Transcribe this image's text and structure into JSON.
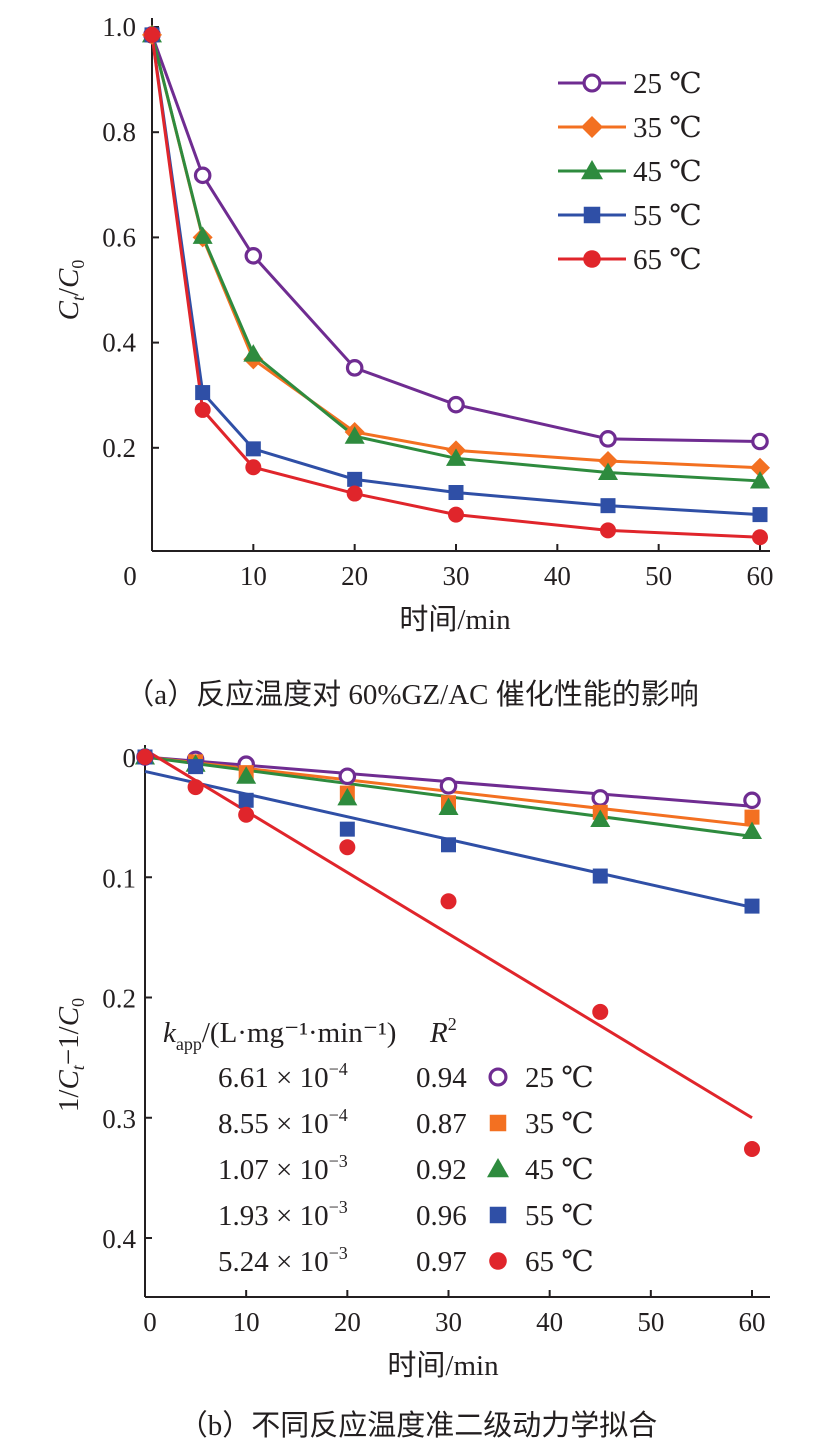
{
  "chart_data": [
    {
      "type": "line",
      "caption": "（a）反应温度对 60%GZ/AC 催化性能的影响",
      "xlabel": "时间/min",
      "ylabel_var": "C",
      "ylabel_sub_t": "t",
      "ylabel_slash": "/",
      "ylabel_sub_0": "0",
      "xlim": [
        0,
        60
      ],
      "ylim": [
        0,
        1.0
      ],
      "x_ticks": [
        0,
        10,
        20,
        30,
        40,
        50,
        60
      ],
      "x_tick_labels": [
        "0",
        "10",
        "20",
        "30",
        "40",
        "50",
        "60"
      ],
      "y_ticks": [
        0.2,
        0.4,
        0.6,
        0.8,
        1.0
      ],
      "y_tick_labels": [
        "0.2",
        "0.4",
        "0.6",
        "0.8",
        "1.0"
      ],
      "legend_position": "top-right",
      "x": [
        0,
        5,
        10,
        20,
        30,
        45,
        60
      ],
      "series": [
        {
          "name": "25 ℃",
          "color": "#6f2c91",
          "marker": "open-circle",
          "values": [
            0.985,
            0.718,
            0.565,
            0.352,
            0.282,
            0.217,
            0.212
          ]
        },
        {
          "name": "35 ℃",
          "color": "#f37021",
          "marker": "diamond",
          "values": [
            0.985,
            0.6,
            0.368,
            0.23,
            0.195,
            0.175,
            0.162
          ]
        },
        {
          "name": "45 ℃",
          "color": "#2e8b3e",
          "marker": "triangle",
          "values": [
            0.985,
            0.602,
            0.378,
            0.222,
            0.18,
            0.153,
            0.137
          ]
        },
        {
          "name": "55 ℃",
          "color": "#2f4fa6",
          "marker": "square",
          "values": [
            0.985,
            0.305,
            0.198,
            0.14,
            0.115,
            0.09,
            0.073
          ]
        },
        {
          "name": "65 ℃",
          "color": "#e0252b",
          "marker": "circle",
          "values": [
            0.985,
            0.272,
            0.163,
            0.113,
            0.073,
            0.043,
            0.03
          ]
        }
      ]
    },
    {
      "type": "scatter",
      "caption": "（b）不同反应温度准二级动力学拟合",
      "xlabel": "时间/min",
      "ylabel_a": "1/",
      "ylabel_var1": "C",
      "ylabel_sub_t": "t",
      "ylabel_b": "−1/",
      "ylabel_var2": "C",
      "ylabel_sub_0": "0",
      "xlim": [
        0,
        60
      ],
      "ylim": [
        0,
        0.45
      ],
      "y_reversed": true,
      "x_ticks": [
        0,
        10,
        20,
        30,
        40,
        50,
        60
      ],
      "x_tick_labels": [
        "0",
        "10",
        "20",
        "30",
        "40",
        "50",
        "60"
      ],
      "y_ticks": [
        0,
        0.1,
        0.2,
        0.3,
        0.4
      ],
      "y_tick_labels": [
        "0",
        "0.1",
        "0.2",
        "0.3",
        "0.4"
      ],
      "x": [
        0,
        5,
        10,
        20,
        30,
        45,
        60
      ],
      "table_header_k": "k",
      "table_header_k_sub": "app",
      "table_header_k_unit": "/(L·mg⁻¹·min⁻¹)",
      "table_header_r": "R",
      "table_header_r_sup": "2",
      "series": [
        {
          "name": "25 ℃",
          "color": "#6f2c91",
          "marker": "open-circle",
          "k_mant": "6.61 × 10",
          "k_exp": "−4",
          "r2": "0.94",
          "values": [
            0.0,
            0.002,
            0.006,
            0.016,
            0.024,
            0.034,
            0.036
          ],
          "fit": [
            0.0,
            0.041
          ]
        },
        {
          "name": "35 ℃",
          "color": "#f37021",
          "marker": "square",
          "k_mant": "8.55 × 10",
          "k_exp": "−4",
          "r2": "0.87",
          "values": [
            0.0,
            0.004,
            0.013,
            0.03,
            0.038,
            0.046,
            0.05
          ],
          "fit": [
            0.0,
            0.057
          ]
        },
        {
          "name": "45 ℃",
          "color": "#2e8b3e",
          "marker": "triangle",
          "values": [
            0.0,
            0.006,
            0.016,
            0.034,
            0.042,
            0.052,
            0.062
          ],
          "k_mant": "1.07 × 10",
          "k_exp": "−3",
          "r2": "0.92",
          "fit": [
            0.0,
            0.066
          ]
        },
        {
          "name": "55 ℃",
          "color": "#2f4fa6",
          "marker": "square",
          "k_mant": "1.93 × 10",
          "k_exp": "−3",
          "r2": "0.96",
          "values": [
            0.0,
            0.008,
            0.036,
            0.06,
            0.073,
            0.099,
            0.124
          ],
          "fit": [
            0.012,
            0.125
          ]
        },
        {
          "name": "65 ℃",
          "color": "#e0252b",
          "marker": "circle",
          "k_mant": "5.24 × 10",
          "k_exp": "−3",
          "r2": "0.97",
          "values": [
            0.0,
            0.025,
            0.048,
            0.075,
            0.12,
            0.212,
            0.326
          ],
          "fit": [
            -0.006,
            0.3
          ]
        }
      ]
    }
  ]
}
